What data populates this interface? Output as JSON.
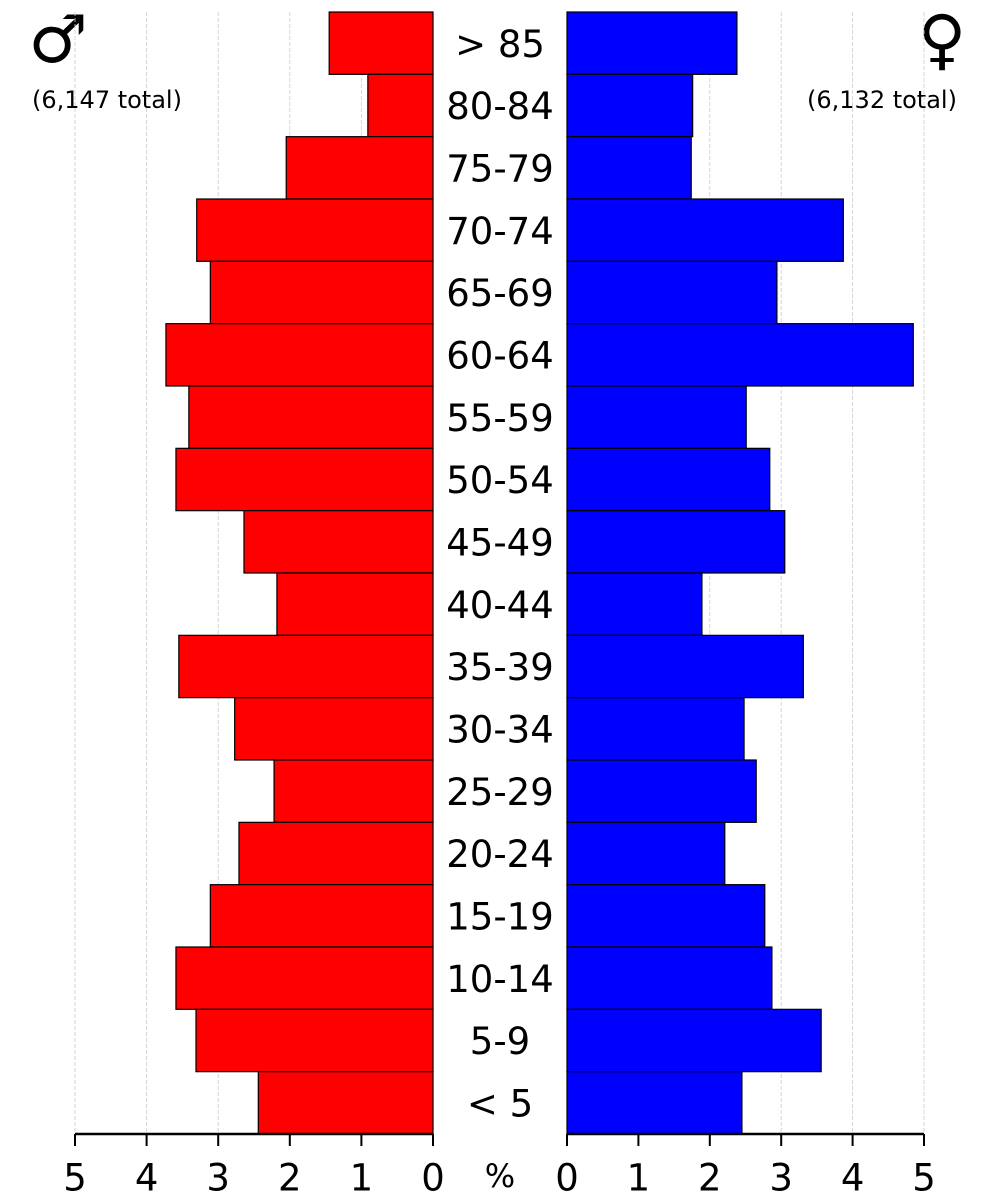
{
  "chart_data": {
    "type": "pyramid",
    "categories": [
      "> 85",
      "80-84",
      "75-79",
      "70-74",
      "65-69",
      "60-64",
      "55-59",
      "50-54",
      "45-49",
      "40-44",
      "35-39",
      "30-34",
      "25-29",
      "20-24",
      "15-19",
      "10-14",
      "5-9",
      "< 5"
    ],
    "series": [
      {
        "name": "♂",
        "total_label": "(6,147 total)",
        "color": "#ff0000",
        "values": [
          1.45,
          0.91,
          2.05,
          3.3,
          3.11,
          3.73,
          3.41,
          3.59,
          2.64,
          2.18,
          3.55,
          2.77,
          2.22,
          2.71,
          3.11,
          3.59,
          3.31,
          2.44
        ]
      },
      {
        "name": "♀",
        "total_label": "(6,132 total)",
        "color": "#0000ff",
        "values": [
          2.38,
          1.76,
          1.74,
          3.87,
          2.94,
          4.85,
          2.51,
          2.84,
          3.05,
          1.89,
          3.31,
          2.48,
          2.65,
          2.21,
          2.77,
          2.87,
          3.56,
          2.45
        ]
      }
    ],
    "xlabel": "%",
    "xlim": [
      0,
      5
    ],
    "xticks": [
      0,
      1,
      2,
      3,
      4,
      5
    ],
    "grid": true
  }
}
